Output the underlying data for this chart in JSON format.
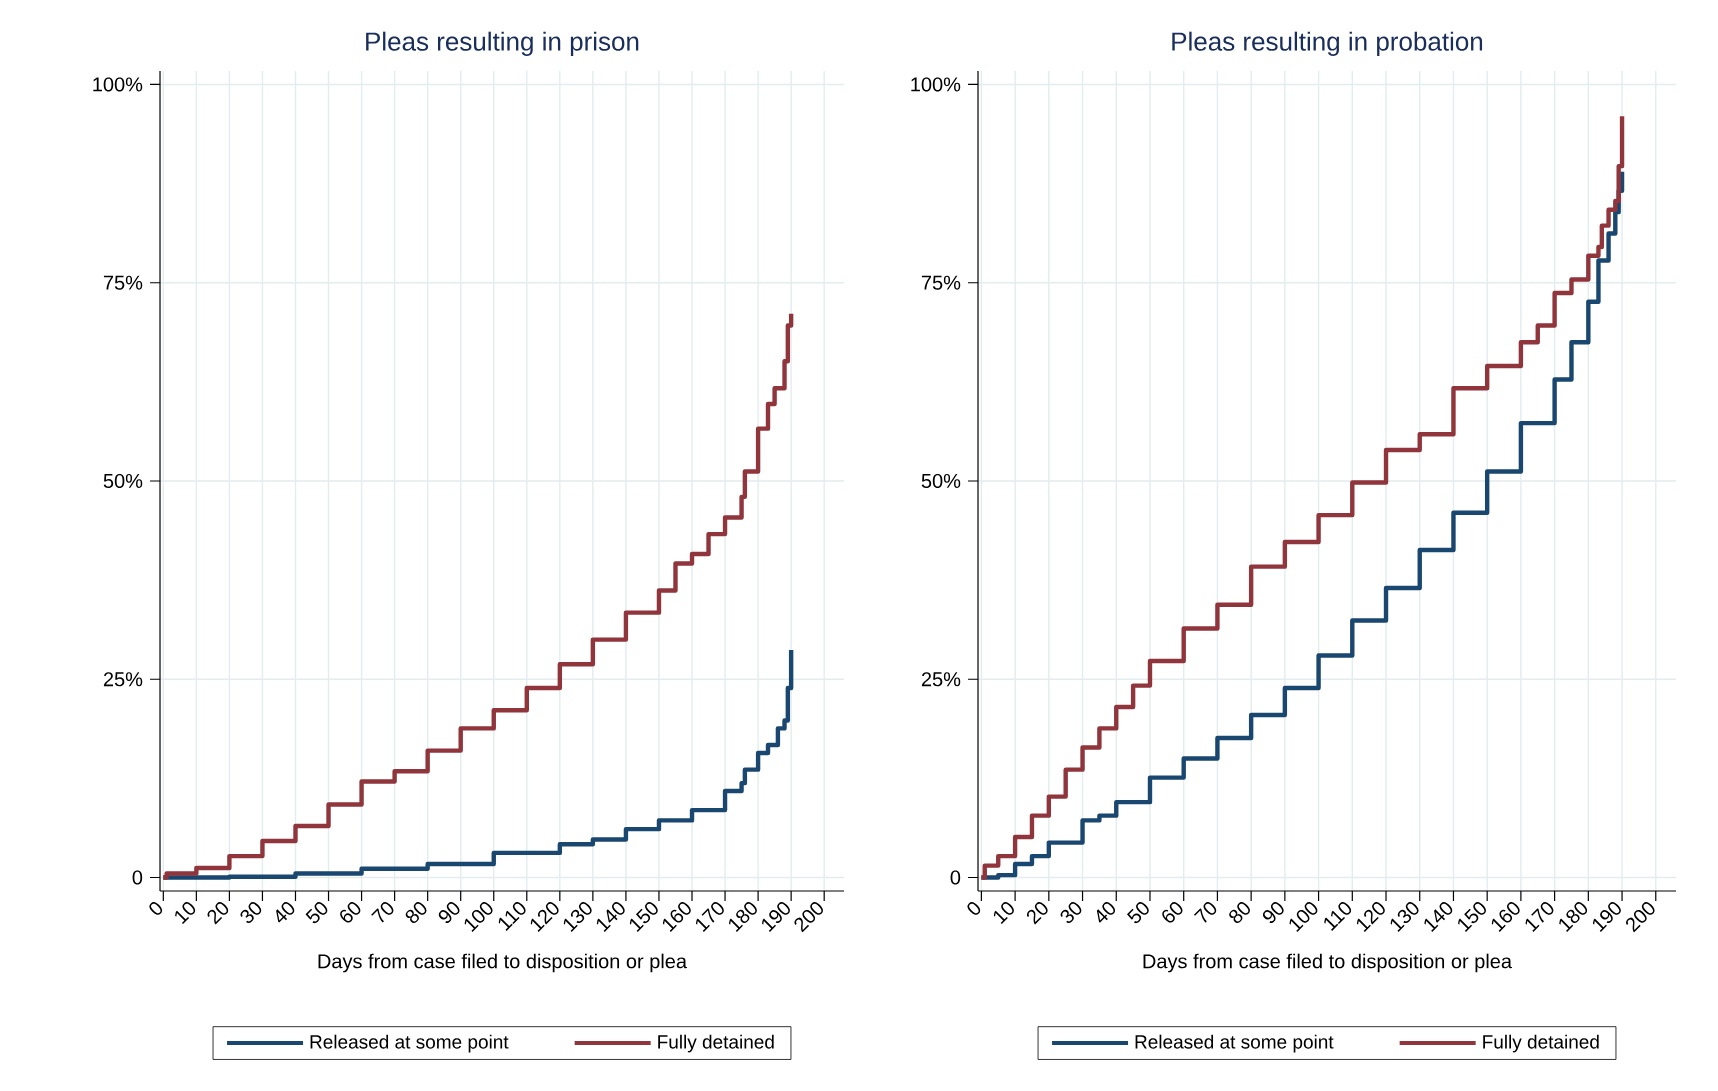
{
  "chart_data": [
    {
      "type": "step",
      "title": "Pleas resulting in prison",
      "xlabel": "Days from case filed to disposition or plea",
      "xlim": [
        -1,
        206
      ],
      "ylim": [
        -1.7,
        101.7
      ],
      "xticks": [
        0,
        10,
        20,
        30,
        40,
        50,
        60,
        70,
        80,
        90,
        100,
        110,
        120,
        130,
        140,
        150,
        160,
        170,
        180,
        190,
        200
      ],
      "yticks": [
        0,
        {
          "value": 25,
          "label": "25%"
        },
        {
          "value": 50,
          "label": "50%"
        },
        {
          "value": 75,
          "label": "75%"
        },
        {
          "value": 100,
          "label": "100%"
        }
      ],
      "grid": true,
      "legend": "bottom",
      "series": [
        {
          "name": "Released at some point",
          "color": "#1a476f",
          "x": [
            0,
            20,
            40,
            60,
            80,
            100,
            120,
            130,
            140,
            150,
            160,
            170,
            175,
            176,
            180,
            183,
            186,
            188,
            189,
            190
          ],
          "values": [
            0,
            0.1,
            0.5,
            1.1,
            1.7,
            3.1,
            4.2,
            4.8,
            6.1,
            7.2,
            8.5,
            10.9,
            11.9,
            13.6,
            15.7,
            16.7,
            18.8,
            19.8,
            23.9,
            28.7
          ]
        },
        {
          "name": "Fully detained",
          "color": "#90353b",
          "x": [
            0,
            1,
            10,
            20,
            30,
            40,
            50,
            60,
            70,
            80,
            90,
            100,
            110,
            120,
            130,
            140,
            150,
            155,
            160,
            165,
            170,
            175,
            176,
            180,
            183,
            185,
            188,
            189,
            190
          ],
          "values": [
            0,
            0.5,
            1.2,
            2.7,
            4.6,
            6.5,
            9.2,
            12.1,
            13.4,
            16.0,
            18.8,
            21.1,
            23.9,
            26.9,
            30.0,
            33.4,
            36.2,
            39.6,
            40.8,
            43.3,
            45.4,
            48.0,
            51.2,
            56.6,
            59.7,
            61.7,
            65.1,
            69.6,
            71.1
          ]
        }
      ]
    },
    {
      "type": "step",
      "title": "Pleas resulting in probation",
      "xlabel": "Days from case filed to disposition or plea",
      "xlim": [
        -1,
        206
      ],
      "ylim": [
        -1.7,
        101.7
      ],
      "xticks": [
        0,
        10,
        20,
        30,
        40,
        50,
        60,
        70,
        80,
        90,
        100,
        110,
        120,
        130,
        140,
        150,
        160,
        170,
        180,
        190,
        200
      ],
      "yticks": [
        0,
        {
          "value": 25,
          "label": "25%"
        },
        {
          "value": 50,
          "label": "50%"
        },
        {
          "value": 75,
          "label": "75%"
        },
        {
          "value": 100,
          "label": "100%"
        }
      ],
      "grid": true,
      "legend": "bottom",
      "series": [
        {
          "name": "Released at some point",
          "color": "#1a476f",
          "x": [
            0,
            5,
            10,
            15,
            20,
            30,
            35,
            40,
            50,
            60,
            70,
            80,
            90,
            100,
            110,
            120,
            130,
            140,
            150,
            160,
            170,
            175,
            180,
            183,
            186,
            188,
            189,
            190
          ],
          "values": [
            0,
            0.3,
            1.7,
            2.7,
            4.4,
            7.2,
            7.8,
            9.5,
            12.6,
            15.0,
            17.6,
            20.5,
            23.9,
            28.0,
            32.4,
            36.5,
            41.3,
            46.0,
            51.2,
            57.3,
            62.8,
            67.5,
            72.6,
            77.8,
            81.2,
            83.9,
            86.6,
            89.0
          ]
        },
        {
          "name": "Fully detained",
          "color": "#90353b",
          "x": [
            0,
            1,
            5,
            10,
            15,
            20,
            25,
            30,
            35,
            40,
            45,
            50,
            60,
            70,
            80,
            90,
            100,
            110,
            120,
            130,
            140,
            150,
            160,
            165,
            170,
            175,
            180,
            183,
            184,
            186,
            188,
            189,
            190
          ],
          "values": [
            0,
            1.5,
            2.7,
            5.1,
            7.8,
            10.2,
            13.6,
            16.4,
            18.8,
            21.5,
            24.2,
            27.3,
            31.4,
            34.4,
            39.2,
            42.3,
            45.7,
            49.8,
            53.9,
            55.9,
            61.7,
            64.5,
            67.5,
            69.6,
            73.7,
            75.4,
            78.4,
            79.5,
            82.2,
            84.2,
            85.3,
            89.7,
            96.0
          ]
        }
      ]
    }
  ]
}
